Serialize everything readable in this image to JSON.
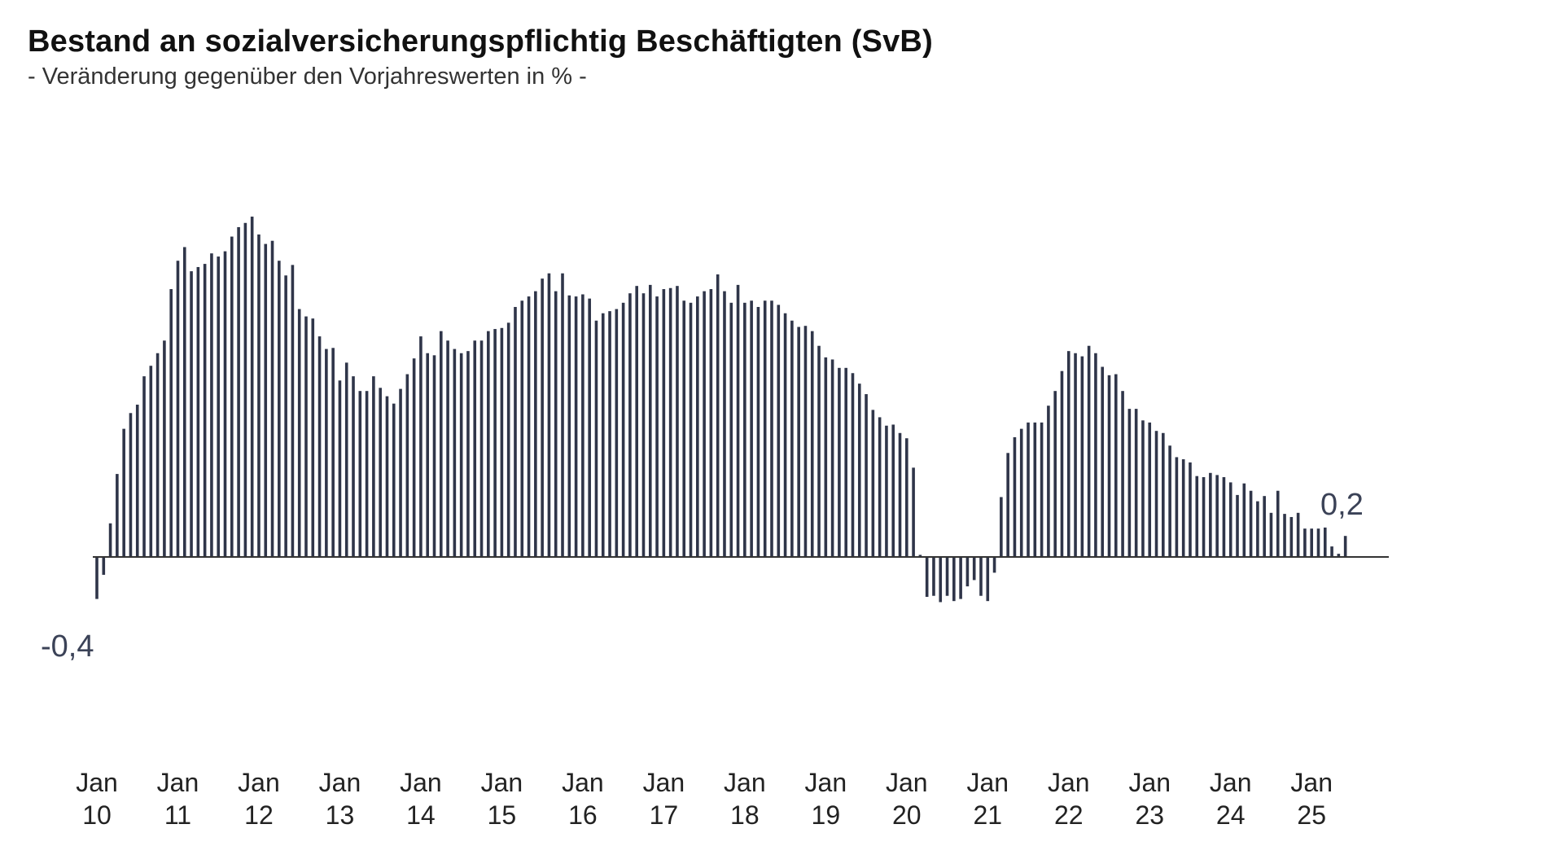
{
  "title": "Bestand an sozialversicherungspflichtig Beschäftigten (SvB)",
  "subtitle": "- Veränderung gegenüber den Vorjahreswerten in % -",
  "colors": {
    "bar": "#2f3549",
    "axis": "#333333",
    "label": "#3b4257"
  },
  "chart_data": {
    "type": "bar",
    "title": "Bestand an sozialversicherungspflichtig Beschäftigten (SvB)",
    "subtitle": "- Veränderung gegenüber den Vorjahreswerten in % -",
    "x_start": "2010-01",
    "x_end": "2025-06",
    "frequency": "monthly",
    "ylim": [
      -0.6,
      3.6
    ],
    "grid": false,
    "legend": "none",
    "x_tick_labels": [
      [
        "Jan",
        "10"
      ],
      [
        "Jan",
        "11"
      ],
      [
        "Jan",
        "12"
      ],
      [
        "Jan",
        "13"
      ],
      [
        "Jan",
        "14"
      ],
      [
        "Jan",
        "15"
      ],
      [
        "Jan",
        "16"
      ],
      [
        "Jan",
        "17"
      ],
      [
        "Jan",
        "18"
      ],
      [
        "Jan",
        "19"
      ],
      [
        "Jan",
        "20"
      ],
      [
        "Jan",
        "21"
      ],
      [
        "Jan",
        "22"
      ],
      [
        "Jan",
        "23"
      ],
      [
        "Jan",
        "24"
      ],
      [
        "Jan",
        "25"
      ]
    ],
    "annotations": [
      {
        "text": "-0,4",
        "month": "2010-01"
      },
      {
        "text": "0,2",
        "month": "2025-06"
      }
    ],
    "values": [
      -0.4,
      -0.17,
      0.32,
      0.79,
      1.22,
      1.37,
      1.45,
      1.72,
      1.82,
      1.94,
      2.06,
      2.55,
      2.82,
      2.95,
      2.72,
      2.76,
      2.79,
      2.89,
      2.86,
      2.91,
      3.05,
      3.14,
      3.18,
      3.24,
      3.07,
      2.98,
      3.01,
      2.82,
      2.68,
      2.78,
      2.36,
      2.29,
      2.27,
      2.1,
      1.98,
      1.99,
      1.68,
      1.85,
      1.72,
      1.58,
      1.58,
      1.72,
      1.61,
      1.53,
      1.46,
      1.6,
      1.74,
      1.89,
      2.1,
      1.94,
      1.92,
      2.15,
      2.06,
      1.98,
      1.94,
      1.96,
      2.06,
      2.06,
      2.15,
      2.17,
      2.18,
      2.23,
      2.38,
      2.44,
      2.48,
      2.53,
      2.65,
      2.7,
      2.53,
      2.7,
      2.49,
      2.48,
      2.5,
      2.46,
      2.25,
      2.32,
      2.34,
      2.36,
      2.42,
      2.51,
      2.58,
      2.51,
      2.59,
      2.48,
      2.55,
      2.56,
      2.58,
      2.44,
      2.42,
      2.48,
      2.53,
      2.55,
      2.69,
      2.53,
      2.42,
      2.59,
      2.42,
      2.44,
      2.38,
      2.44,
      2.44,
      2.4,
      2.32,
      2.25,
      2.19,
      2.2,
      2.15,
      2.01,
      1.9,
      1.88,
      1.8,
      1.8,
      1.75,
      1.65,
      1.55,
      1.4,
      1.33,
      1.25,
      1.26,
      1.18,
      1.13,
      0.85,
      0.02,
      -0.38,
      -0.37,
      -0.43,
      -0.37,
      -0.42,
      -0.4,
      -0.28,
      -0.22,
      -0.37,
      -0.42,
      -0.15,
      0.57,
      0.99,
      1.14,
      1.22,
      1.28,
      1.28,
      1.28,
      1.44,
      1.58,
      1.77,
      1.96,
      1.94,
      1.91,
      2.01,
      1.94,
      1.81,
      1.73,
      1.74,
      1.58,
      1.41,
      1.41,
      1.3,
      1.28,
      1.2,
      1.18,
      1.06,
      0.95,
      0.93,
      0.9,
      0.77,
      0.76,
      0.8,
      0.78,
      0.76,
      0.71,
      0.59,
      0.7,
      0.63,
      0.53,
      0.58,
      0.42,
      0.63,
      0.41,
      0.38,
      0.42,
      0.27,
      0.27,
      0.27,
      0.28,
      0.1,
      0.03,
      0.2
    ]
  }
}
